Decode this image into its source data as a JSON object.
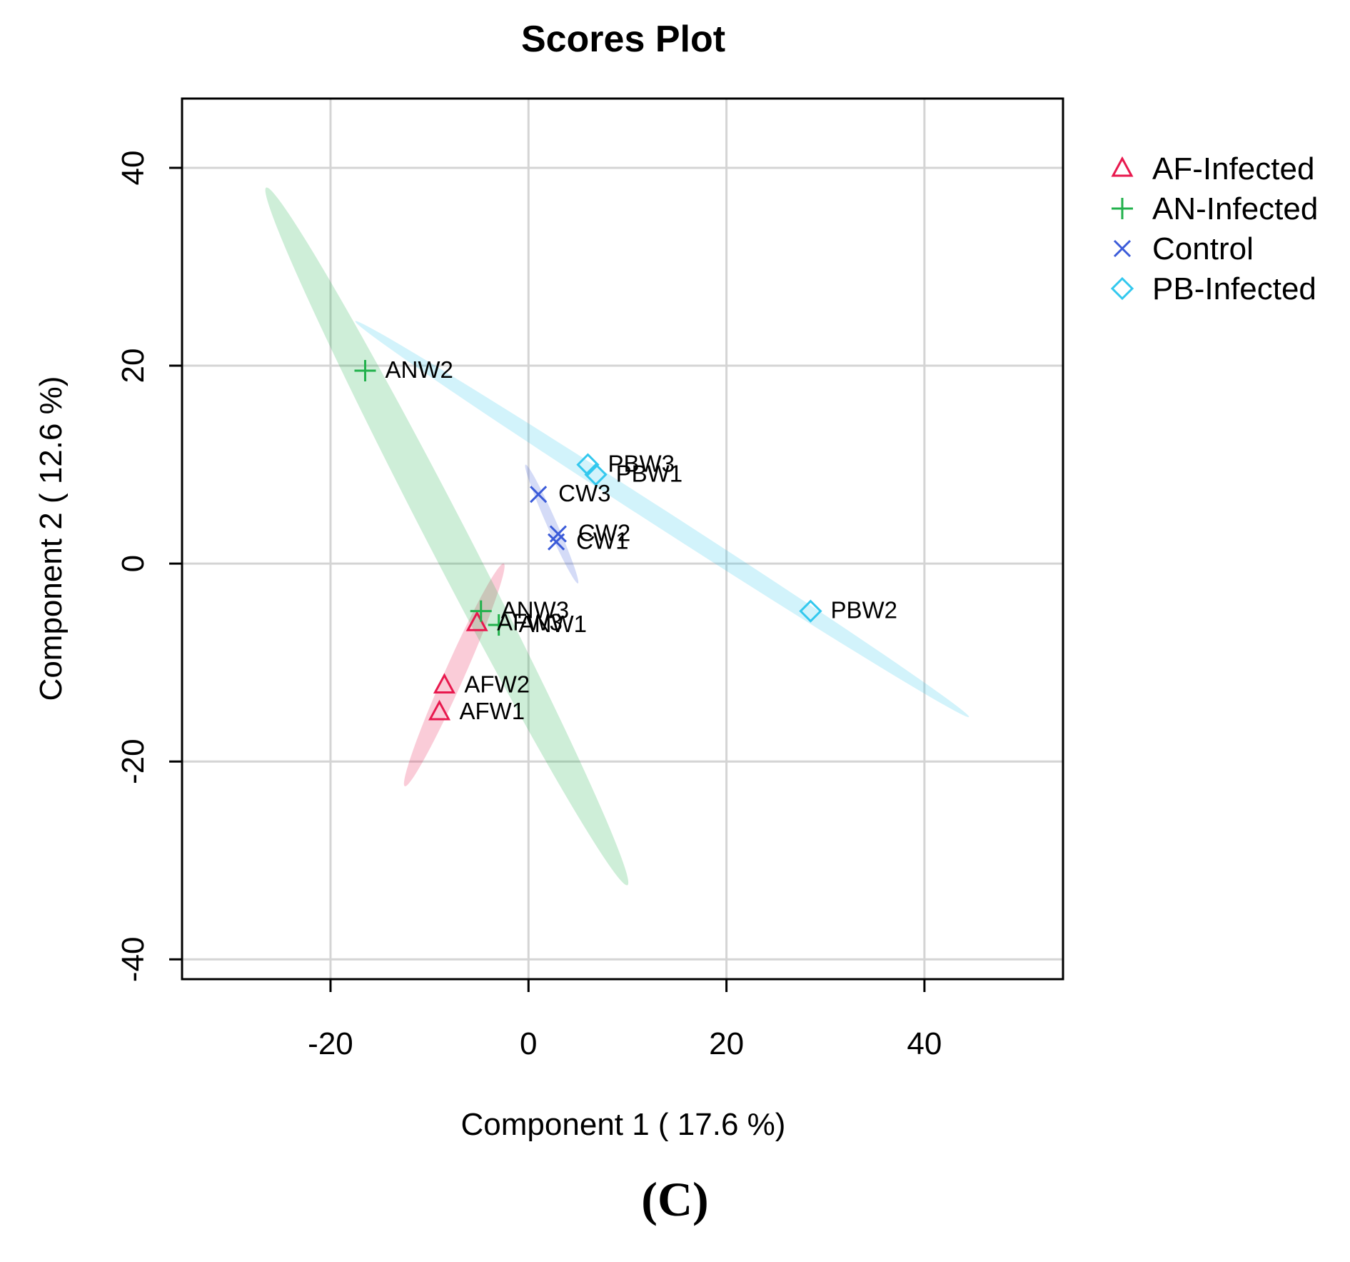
{
  "chart_data": {
    "type": "scatter",
    "title": "Scores Plot",
    "xlabel": "Component 1 ( 17.6 %)",
    "ylabel": "Component 2 ( 12.6 %)",
    "xlim": [
      -35,
      54
    ],
    "ylim": [
      -42,
      47
    ],
    "xticks": [
      -20,
      0,
      20,
      40
    ],
    "yticks": [
      -40,
      -20,
      0,
      20,
      40
    ],
    "grid": true,
    "legend_position": "right",
    "series": [
      {
        "name": "AF-Infected",
        "marker": "triangle",
        "color": "#E8194E",
        "points": [
          {
            "label": "AFW1",
            "x": -9,
            "y": -15
          },
          {
            "label": "AFW2",
            "x": -8.5,
            "y": -12.3
          },
          {
            "label": "AFW3",
            "x": -5.2,
            "y": -6
          }
        ],
        "ellipse": {
          "x1": -12.5,
          "y1": -22.5,
          "x2": -2.5,
          "y2": 0,
          "half_width": 1.0
        }
      },
      {
        "name": "AN-Infected",
        "marker": "plus",
        "color": "#22B14C",
        "points": [
          {
            "label": "ANW1",
            "x": -3,
            "y": -6.2
          },
          {
            "label": "ANW2",
            "x": -16.5,
            "y": 19.5
          },
          {
            "label": "ANW3",
            "x": -4.8,
            "y": -4.8
          }
        ],
        "ellipse": {
          "x1": -26.5,
          "y1": 38,
          "x2": 10,
          "y2": -32.5,
          "half_width": 2.0
        }
      },
      {
        "name": "Control",
        "marker": "x",
        "color": "#3B5BD9",
        "points": [
          {
            "label": "CW1",
            "x": 2.8,
            "y": 2.2
          },
          {
            "label": "CW2",
            "x": 3,
            "y": 3
          },
          {
            "label": "CW3",
            "x": 1,
            "y": 7
          }
        ],
        "ellipse": {
          "x1": -0.3,
          "y1": 10,
          "x2": 5,
          "y2": -2,
          "half_width": 0.5
        }
      },
      {
        "name": "PB-Infected",
        "marker": "diamond",
        "color": "#33C8EE",
        "points": [
          {
            "label": "PBW1",
            "x": 6.8,
            "y": 9
          },
          {
            "label": "PBW2",
            "x": 28.5,
            "y": -4.8
          },
          {
            "label": "PBW3",
            "x": 6,
            "y": 10
          }
        ],
        "ellipse": {
          "x1": -17.5,
          "y1": 24.5,
          "x2": 44.5,
          "y2": -15.5,
          "half_width": 0.9
        }
      }
    ],
    "caption": "(C)"
  }
}
